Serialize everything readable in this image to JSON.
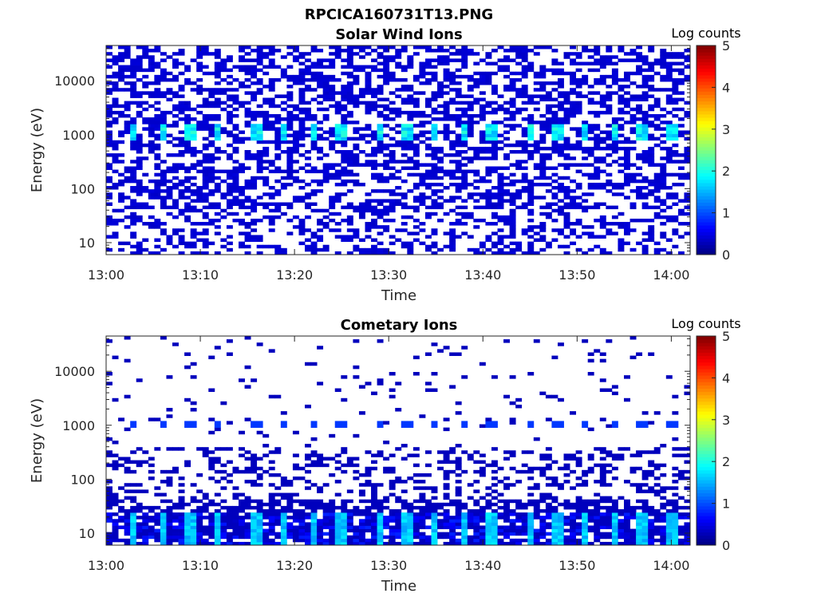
{
  "figure": {
    "title": "RPCICA160731T13.PNG"
  },
  "colors": {
    "colormap": "jet",
    "axis": "#262626",
    "background": "#ffffff"
  },
  "chart_data": [
    {
      "type": "heatmap",
      "title": "Solar Wind Ions",
      "xlabel": "Time",
      "ylabel": "Energy (eV)",
      "x_ticks": [
        "13:00",
        "13:10",
        "13:20",
        "13:30",
        "13:40",
        "13:50",
        "14:00"
      ],
      "y_ticks": [
        "10",
        "100",
        "1000",
        "10000"
      ],
      "y_scale": "log",
      "x_range": [
        "13:00",
        "14:02"
      ],
      "ylim": [
        6,
        45000
      ],
      "colorbar": {
        "label": "Log counts",
        "range": [
          0,
          5
        ],
        "ticks": [
          "0",
          "1",
          "2",
          "3",
          "4",
          "5"
        ]
      },
      "pattern": {
        "background_level": 0.35,
        "background_density": 0.5,
        "peak_level": 2.1,
        "peak_energy_eV": [
          800,
          1600
        ],
        "peak_times": [
          "13:03",
          "13:06",
          "13:09",
          "13:12",
          "13:16",
          "13:19",
          "13:22",
          "13:25",
          "13:29",
          "13:32",
          "13:35",
          "13:38",
          "13:41",
          "13:45",
          "13:48",
          "13:51",
          "13:54",
          "13:57",
          "14:00"
        ]
      }
    },
    {
      "type": "heatmap",
      "title": "Cometary Ions",
      "xlabel": "Time",
      "ylabel": "Energy (eV)",
      "x_ticks": [
        "13:00",
        "13:10",
        "13:20",
        "13:30",
        "13:40",
        "13:50",
        "14:00"
      ],
      "y_ticks": [
        "10",
        "100",
        "1000",
        "10000"
      ],
      "y_scale": "log",
      "x_range": [
        "13:00",
        "14:02"
      ],
      "ylim": [
        6,
        45000
      ],
      "colorbar": {
        "label": "Log counts",
        "range": [
          0,
          5
        ],
        "ticks": [
          "0",
          "1",
          "2",
          "3",
          "4",
          "5"
        ]
      },
      "pattern": {
        "background_level": 0.3,
        "sparse_density_high": 0.04,
        "sparse_density_mid": 0.25,
        "low_energy_level": 1.4,
        "low_energy_band_eV": [
          6,
          25
        ],
        "peak_energy_eV": 1000,
        "peak_level": 0.9,
        "peak_times": [
          "13:03",
          "13:06",
          "13:09",
          "13:12",
          "13:16",
          "13:19",
          "13:22",
          "13:25",
          "13:29",
          "13:32",
          "13:35",
          "13:38",
          "13:41",
          "13:45",
          "13:48",
          "13:51",
          "13:54",
          "13:57",
          "14:00"
        ]
      }
    }
  ]
}
